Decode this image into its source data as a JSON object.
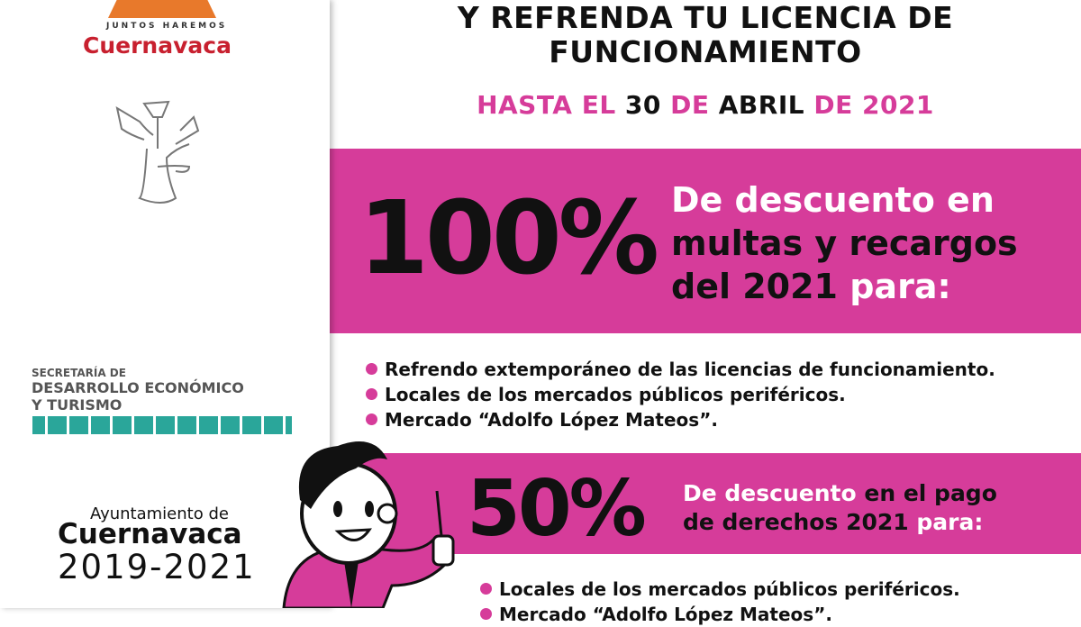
{
  "left": {
    "logo_top": {
      "tagline": "JUNTOS HAREMOS",
      "city": "Cuernavaca"
    },
    "secretaria": {
      "line1": "SECRETARÍA DE",
      "line2": "DESARROLLO ECONÓMICO",
      "line3": "Y TURISMO"
    },
    "ayuntamiento": {
      "line1": "Ayuntamiento de",
      "line2": "Cuernavaca",
      "line3": "2019-2021"
    }
  },
  "header": {
    "line1": "Y REFRENDA TU LICENCIA DE",
    "line2": "FUNCIONAMIENTO",
    "deadline": {
      "p1": "HASTA EL",
      "p2": "30",
      "p3": "DE",
      "p4": "ABRIL",
      "p5": "DE 2021"
    }
  },
  "offer1": {
    "percent": "100%",
    "l1": "De descuento en",
    "l2": "multas y recargos",
    "l3a": "del 2021",
    "l3b": "para:",
    "items": [
      "Refrendo extemporáneo de las licencias de funcionamiento.",
      "Locales de los mercados públicos periféricos.",
      "Mercado “Adolfo López Mateos”."
    ]
  },
  "offer2": {
    "percent": "50%",
    "l1a": "De descuento",
    "l1b": "en el pago",
    "l2a": "de derechos 2021",
    "l2b": "para:",
    "items": [
      "Locales de los mercados públicos periféricos.",
      "Mercado “Adolfo López Mateos”."
    ]
  },
  "colors": {
    "accent": "#d63c9a",
    "logo_red": "#c8202f",
    "logo_orange": "#e8792b",
    "teal": "#2aa69a"
  }
}
